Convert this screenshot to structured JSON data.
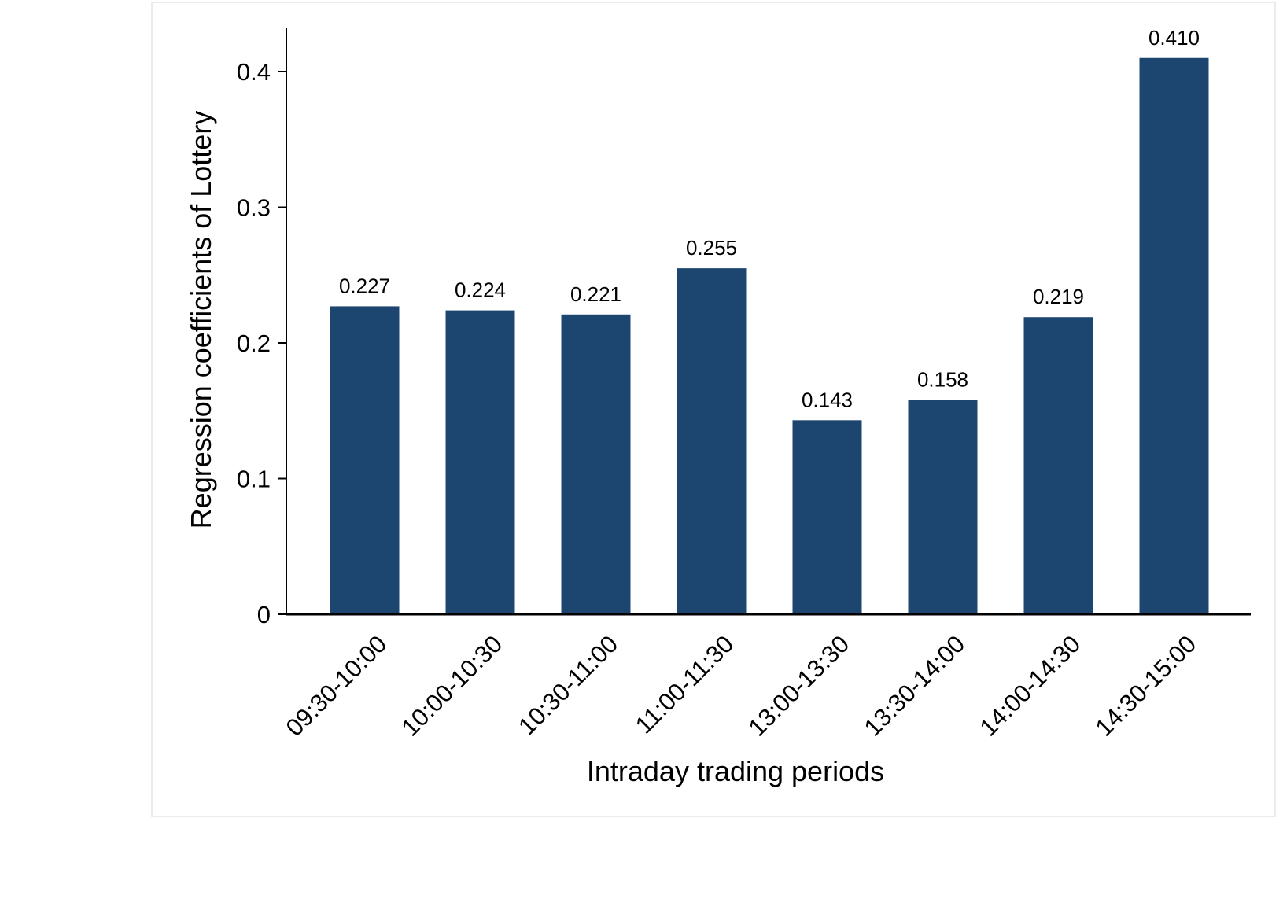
{
  "chart_data": {
    "type": "bar",
    "categories": [
      "09:30-10:00",
      "10:00-10:30",
      "10:30-11:00",
      "11:00-11:30",
      "13:00-13:30",
      "13:30-14:00",
      "14:00-14:30",
      "14:30-15:00"
    ],
    "values": [
      0.227,
      0.224,
      0.221,
      0.255,
      0.143,
      0.158,
      0.219,
      0.41
    ],
    "data_labels": [
      "0.227",
      "0.224",
      "0.221",
      "0.255",
      "0.143",
      "0.158",
      "0.219",
      "0.410"
    ],
    "xlabel": "Intraday trading periods",
    "ylabel": "Regression coefficients of Lottery",
    "ylim": [
      0,
      0.43
    ],
    "yticks": [
      0,
      0.1,
      0.2,
      0.3,
      0.4
    ],
    "ytick_labels": [
      "0",
      "0.1",
      "0.2",
      "0.3",
      "0.4"
    ],
    "bar_color": "#1c4670",
    "grid": false,
    "legend": "none"
  }
}
